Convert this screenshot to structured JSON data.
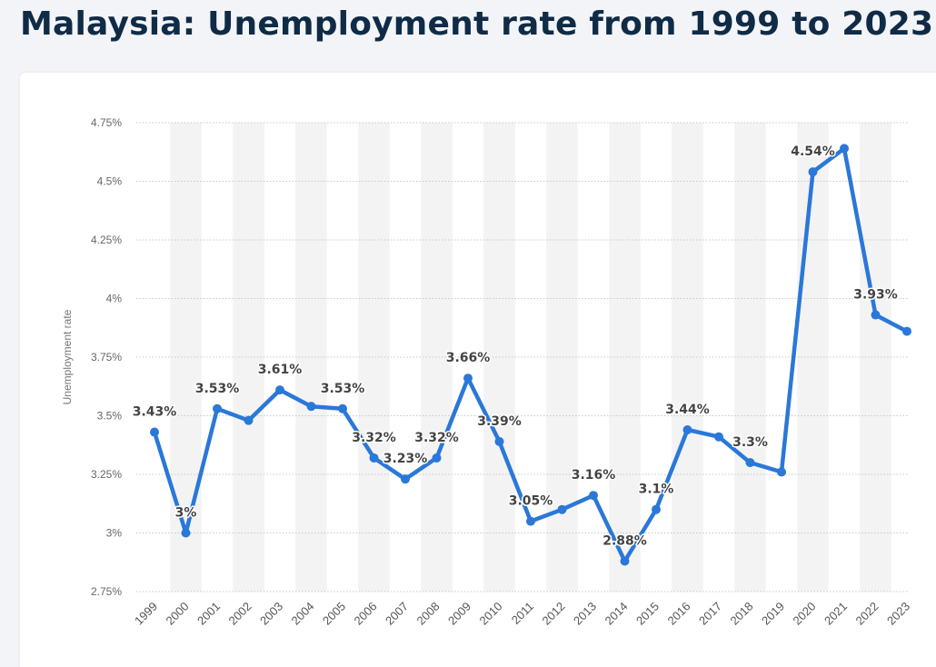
{
  "page": {
    "title": "Malaysia: Unemployment rate from 1999 to 2023"
  },
  "colors": {
    "line": "#2a78d8",
    "band": "#f3f3f3",
    "grid": "#c8c8c8",
    "title": "#102b46"
  },
  "chart_data": {
    "type": "line",
    "title": "Malaysia: Unemployment rate from 1999 to 2023",
    "xlabel": "",
    "ylabel": "Unemployment rate",
    "categories": [
      "1999",
      "2000",
      "2001",
      "2002",
      "2003",
      "2004",
      "2005",
      "2006",
      "2007",
      "2008",
      "2009",
      "2010",
      "2011",
      "2012",
      "2013",
      "2014",
      "2015",
      "2016",
      "2017",
      "2018",
      "2019",
      "2020",
      "2021",
      "2022",
      "2023"
    ],
    "series": [
      {
        "values": [
          3.43,
          3.0,
          3.53,
          3.48,
          3.61,
          3.54,
          3.53,
          3.32,
          3.23,
          3.32,
          3.66,
          3.39,
          3.05,
          3.1,
          3.16,
          2.88,
          3.1,
          3.44,
          3.41,
          3.3,
          3.26,
          4.54,
          4.64,
          3.93,
          3.86
        ]
      }
    ],
    "data_labels": [
      {
        "index": 0,
        "text": "3.43%"
      },
      {
        "index": 1,
        "text": "3%"
      },
      {
        "index": 2,
        "text": "3.53%"
      },
      {
        "index": 4,
        "text": "3.61%"
      },
      {
        "index": 6,
        "text": "3.53%"
      },
      {
        "index": 7,
        "text": "3.32%"
      },
      {
        "index": 8,
        "text": "3.23%"
      },
      {
        "index": 9,
        "text": "3.32%"
      },
      {
        "index": 10,
        "text": "3.66%"
      },
      {
        "index": 11,
        "text": "3.39%"
      },
      {
        "index": 12,
        "text": "3.05%"
      },
      {
        "index": 14,
        "text": "3.16%"
      },
      {
        "index": 15,
        "text": "2.88%"
      },
      {
        "index": 16,
        "text": "3.1%"
      },
      {
        "index": 17,
        "text": "3.44%"
      },
      {
        "index": 19,
        "text": "3.3%"
      },
      {
        "index": 21,
        "text": "4.54%"
      },
      {
        "index": 23,
        "text": "3.93%"
      }
    ],
    "yticks": [
      "2.75%",
      "3%",
      "3.25%",
      "3.5%",
      "3.75%",
      "4%",
      "4.25%",
      "4.5%",
      "4.75%"
    ],
    "ytick_values": [
      2.75,
      3.0,
      3.25,
      3.5,
      3.75,
      4.0,
      4.25,
      4.5,
      4.75
    ],
    "ylim": [
      2.75,
      4.75
    ],
    "grid": true,
    "legend": "none"
  }
}
